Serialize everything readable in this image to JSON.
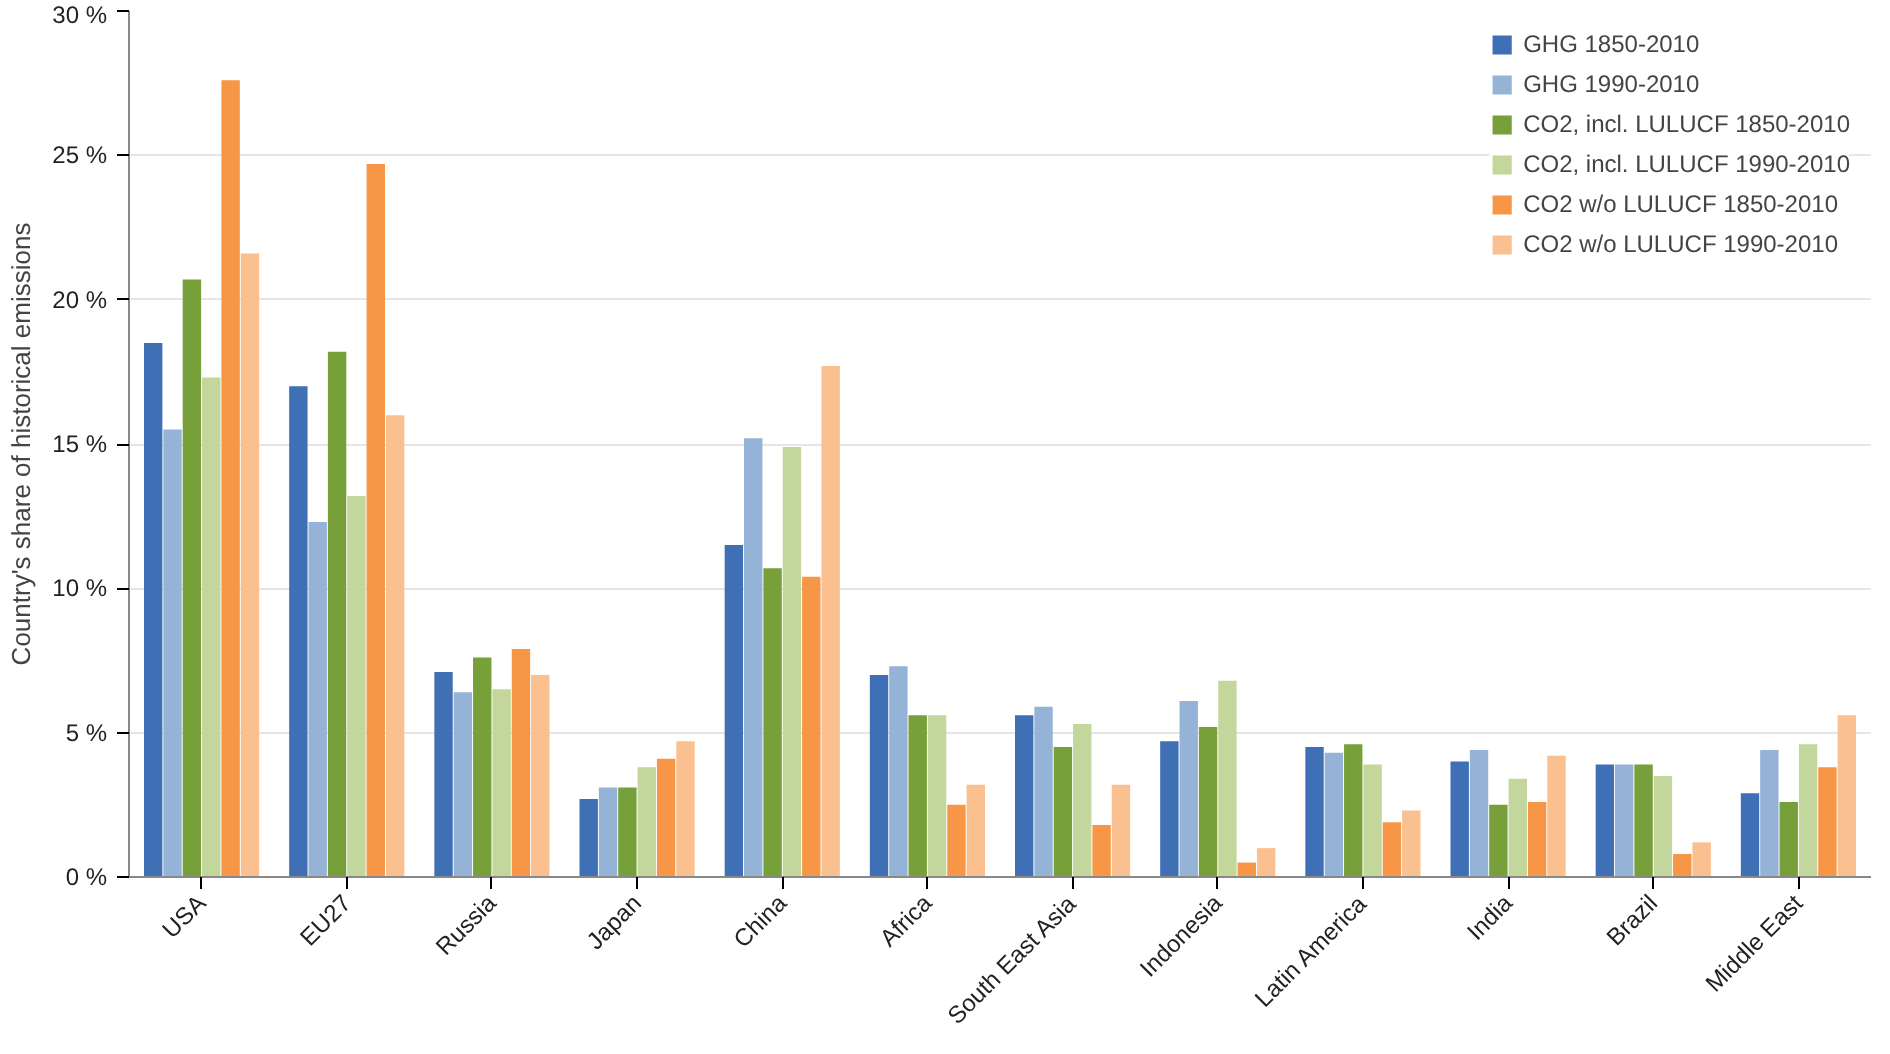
{
  "chart_data": {
    "type": "bar",
    "ylabel": "Country's share of historical emissions",
    "categories": [
      "USA",
      "EU27",
      "Russia",
      "Japan",
      "China",
      "Africa",
      "South East Asia",
      "Indonesia",
      "Latin America",
      "India",
      "Brazil",
      "Middle East"
    ],
    "series": [
      {
        "name": "GHG 1850-2010",
        "color": "#3f6fb5",
        "values": [
          18.5,
          17.0,
          7.1,
          2.7,
          11.5,
          7.0,
          5.6,
          4.7,
          4.5,
          4.0,
          3.9,
          2.9
        ]
      },
      {
        "name": "GHG 1990-2010",
        "color": "#95b3d7",
        "values": [
          15.5,
          12.3,
          6.4,
          3.1,
          15.2,
          7.3,
          5.9,
          6.1,
          4.3,
          4.4,
          3.9,
          4.4
        ]
      },
      {
        "name": "CO2, incl. LULUCF 1850-2010",
        "color": "#77a03b",
        "values": [
          20.7,
          18.2,
          7.6,
          3.1,
          10.7,
          5.6,
          4.5,
          5.2,
          4.6,
          2.5,
          3.9,
          2.6
        ]
      },
      {
        "name": "CO2, incl. LULUCF 1990-2010",
        "color": "#c3d69b",
        "values": [
          17.3,
          13.2,
          6.5,
          3.8,
          14.9,
          5.6,
          5.3,
          6.8,
          3.9,
          3.4,
          3.5,
          4.6
        ]
      },
      {
        "name": "CO2 w/o LULUCF 1850-2010",
        "color": "#f79646",
        "values": [
          27.6,
          24.7,
          7.9,
          4.1,
          10.4,
          2.5,
          1.8,
          0.5,
          1.9,
          2.6,
          0.8,
          3.8
        ]
      },
      {
        "name": "CO2 w/o LULUCF 1990-2010",
        "color": "#fac090",
        "values": [
          21.6,
          16.0,
          7.0,
          4.7,
          17.7,
          3.2,
          3.2,
          1.0,
          2.3,
          4.2,
          1.2,
          5.6
        ]
      }
    ],
    "ylim": [
      0,
      30
    ],
    "yticks": [
      {
        "value": 0,
        "label": "0 %"
      },
      {
        "value": 5,
        "label": "5 %"
      },
      {
        "value": 10,
        "label": "10 %"
      },
      {
        "value": 15,
        "label": "15 %"
      },
      {
        "value": 20,
        "label": "20 %"
      },
      {
        "value": 25,
        "label": "25 %"
      },
      {
        "value": 30,
        "label": "30 %"
      }
    ],
    "grid": "y",
    "legend": "top right"
  }
}
